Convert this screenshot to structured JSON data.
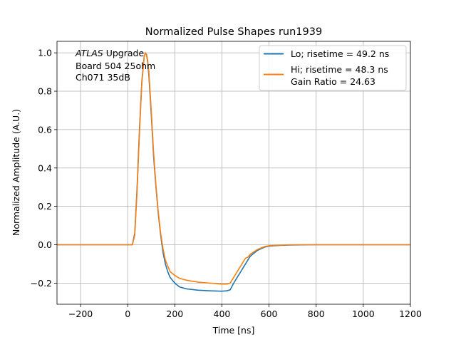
{
  "chart_data": {
    "type": "line",
    "title": "Normalized Pulse Shapes run1939",
    "xlabel": "Time [ns]",
    "ylabel": "Normalized Amplitude (A.U.)",
    "xlim": [
      -300,
      1200
    ],
    "ylim": [
      -0.31,
      1.06
    ],
    "xticks": [
      -200,
      0,
      200,
      400,
      600,
      800,
      1000,
      1200
    ],
    "xtick_labels": [
      "−200",
      "0",
      "200",
      "400",
      "600",
      "800",
      "1000",
      "1200"
    ],
    "yticks": [
      -0.2,
      0.0,
      0.2,
      0.4,
      0.6,
      0.8,
      1.0
    ],
    "ytick_labels": [
      "−0.2",
      "0.0",
      "0.2",
      "0.4",
      "0.6",
      "0.8",
      "1.0"
    ],
    "grid": true,
    "legend_position": "top-right",
    "annotation": {
      "lines": [
        "ATLAS Upgrade",
        " Board 504 25ohm",
        " Ch071 35dB"
      ]
    },
    "series": [
      {
        "name": "Lo; risetime = 49.2 ns",
        "color": "#1f77b4",
        "x": [
          -300,
          -100,
          0,
          20,
          30,
          40,
          50,
          60,
          70,
          75,
          80,
          85,
          90,
          100,
          110,
          120,
          130,
          140,
          150,
          160,
          170,
          180,
          200,
          220,
          250,
          300,
          350,
          400,
          420,
          435,
          450,
          470,
          500,
          520,
          550,
          580,
          600,
          650,
          700,
          800,
          1000,
          1200
        ],
        "y": [
          0.0,
          0.0,
          0.0,
          0.0,
          0.06,
          0.3,
          0.6,
          0.85,
          0.98,
          1.0,
          0.99,
          0.95,
          0.88,
          0.68,
          0.46,
          0.3,
          0.16,
          0.05,
          -0.04,
          -0.1,
          -0.14,
          -0.17,
          -0.2,
          -0.22,
          -0.23,
          -0.237,
          -0.24,
          -0.242,
          -0.24,
          -0.235,
          -0.2,
          -0.16,
          -0.1,
          -0.06,
          -0.03,
          -0.013,
          -0.007,
          -0.003,
          -0.001,
          0.0,
          0.0,
          0.0
        ]
      },
      {
        "name": "Hi; risetime = 48.3 ns\n Gain Ratio = 24.63",
        "color": "#ff7f0e",
        "x": [
          -300,
          -100,
          0,
          20,
          30,
          40,
          50,
          60,
          70,
          75,
          80,
          85,
          90,
          100,
          110,
          120,
          130,
          140,
          150,
          160,
          170,
          180,
          200,
          220,
          250,
          300,
          350,
          400,
          420,
          435,
          450,
          470,
          490,
          500,
          510,
          520,
          550,
          580,
          600,
          650,
          700,
          800,
          1000,
          1200
        ],
        "y": [
          0.0,
          0.0,
          0.0,
          0.0,
          0.05,
          0.28,
          0.58,
          0.84,
          0.98,
          1.0,
          0.99,
          0.96,
          0.9,
          0.7,
          0.48,
          0.31,
          0.17,
          0.06,
          -0.02,
          -0.08,
          -0.11,
          -0.14,
          -0.16,
          -0.175,
          -0.185,
          -0.195,
          -0.2,
          -0.205,
          -0.205,
          -0.2,
          -0.17,
          -0.13,
          -0.09,
          -0.07,
          -0.065,
          -0.05,
          -0.025,
          -0.01,
          -0.005,
          -0.002,
          0.0,
          0.0,
          0.0,
          0.0
        ]
      }
    ]
  }
}
